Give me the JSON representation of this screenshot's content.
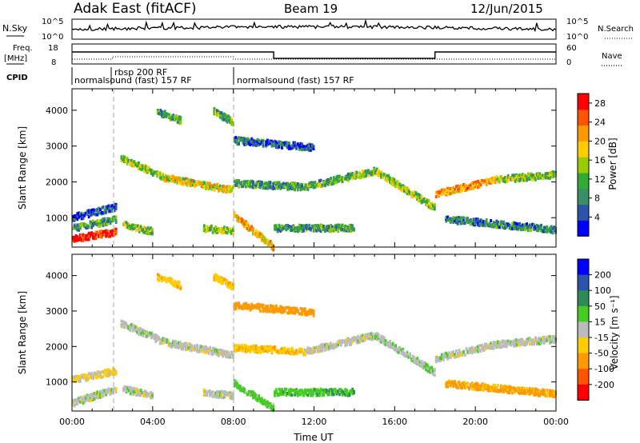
{
  "header": {
    "station": "Adak East (fitACF)",
    "beam": "Beam 19",
    "date": "12/Jun/2015"
  },
  "top_panels": {
    "nsky_label": "N.Sky",
    "nsky_ticks": [
      "10^5",
      "10^0"
    ],
    "nsearch_label": "N.Search",
    "nsearch_ticks": [
      "10^5",
      "10^0"
    ],
    "freq_label": "Freq.",
    "freq_unit": "[MHz]",
    "freq_ticks": [
      "18",
      "8"
    ],
    "nave_label": "Nave",
    "nave_ticks": [
      "60",
      "0"
    ],
    "cpid_label": "CPID",
    "cpid_segments": [
      {
        "label": "normalsound (fast) 157 RF",
        "start_h": 0,
        "end_h": 8
      },
      {
        "label": "rbsp 200 RF",
        "start_h": 2,
        "end_h": 2.3
      },
      {
        "label": "normalsound (fast) 157 RF",
        "start_h": 8,
        "end_h": 24
      }
    ]
  },
  "chart_data": [
    {
      "type": "heatmap",
      "name": "power",
      "title": "",
      "xlabel": "",
      "ylabel": "Slant Range [km]",
      "xlim": [
        0,
        24
      ],
      "ylim": [
        180,
        4600
      ],
      "yticks": [
        "1000",
        "2000",
        "3000",
        "4000"
      ],
      "colorbar": {
        "label": "Power [dB]",
        "ticks": [
          "4",
          "8",
          "12",
          "16",
          "20",
          "24",
          "28"
        ],
        "range": [
          0,
          30
        ],
        "colors": [
          "#0000ff",
          "#2a55a8",
          "#3a8f6a",
          "#33aa33",
          "#99cc00",
          "#ffcc00",
          "#ff9900",
          "#ff5500",
          "#ff0000"
        ]
      },
      "echo_bands": [
        {
          "t": [
            0.0,
            2.2
          ],
          "r_start": 450,
          "r_end": 650,
          "power": 28
        },
        {
          "t": [
            0.0,
            2.2
          ],
          "r_start": 750,
          "r_end": 1000,
          "power": 10
        },
        {
          "t": [
            0.0,
            2.2
          ],
          "r_start": 1050,
          "r_end": 1350,
          "power": 5
        },
        {
          "t": [
            2.4,
            4.6
          ],
          "r_start": 2700,
          "r_end": 2150,
          "power": 14
        },
        {
          "t": [
            4.6,
            8.0
          ],
          "r_start": 2150,
          "r_end": 1800,
          "power": 18
        },
        {
          "t": [
            4.2,
            5.4
          ],
          "r_start": 4000,
          "r_end": 3750,
          "power": 10
        },
        {
          "t": [
            7.0,
            8.0
          ],
          "r_start": 4000,
          "r_end": 3700,
          "power": 12
        },
        {
          "t": [
            8.0,
            10.0
          ],
          "r_start": 1100,
          "r_end": 200,
          "power": 20
        },
        {
          "t": [
            8.0,
            11.5
          ],
          "r_start": 2000,
          "r_end": 1900,
          "power": 10
        },
        {
          "t": [
            11.5,
            15.0
          ],
          "r_start": 1900,
          "r_end": 2350,
          "power": 12
        },
        {
          "t": [
            15.0,
            18.0
          ],
          "r_start": 2350,
          "r_end": 1300,
          "power": 14
        },
        {
          "t": [
            10.0,
            14.0
          ],
          "r_start": 750,
          "r_end": 750,
          "power": 10
        },
        {
          "t": [
            18.0,
            21.0
          ],
          "r_start": 1700,
          "r_end": 2100,
          "power": 22
        },
        {
          "t": [
            21.0,
            24.0
          ],
          "r_start": 2100,
          "r_end": 2250,
          "power": 14
        },
        {
          "t": [
            18.5,
            24.0
          ],
          "r_start": 1000,
          "r_end": 700,
          "power": 8
        },
        {
          "t": [
            8.0,
            12.0
          ],
          "r_start": 3200,
          "r_end": 3000,
          "power": 6
        },
        {
          "t": [
            2.5,
            4.0
          ],
          "r_start": 850,
          "r_end": 650,
          "power": 14
        },
        {
          "t": [
            6.5,
            8.0
          ],
          "r_start": 750,
          "r_end": 650,
          "power": 14
        }
      ]
    },
    {
      "type": "heatmap",
      "name": "velocity",
      "title": "",
      "xlabel": "Time UT",
      "ylabel": "Slant Range [km]",
      "xlim": [
        0,
        24
      ],
      "ylim": [
        180,
        4600
      ],
      "xticks": [
        "00:00",
        "04:00",
        "08:00",
        "12:00",
        "16:00",
        "20:00",
        "00:00"
      ],
      "yticks": [
        "1000",
        "2000",
        "3000",
        "4000"
      ],
      "colorbar": {
        "label": "Velocity [m s⁻¹]",
        "ticks": [
          "200",
          "100",
          "50",
          "15",
          "-15",
          "-50",
          "-100",
          "-200"
        ],
        "colors": [
          "#0000ff",
          "#2a55a8",
          "#2e8b57",
          "#44cc22",
          "#bbbbbb",
          "#ffcc00",
          "#ff9900",
          "#ff5500",
          "#ff0000"
        ]
      },
      "echo_bands": [
        {
          "t": [
            0.0,
            2.2
          ],
          "r_start": 450,
          "r_end": 850,
          "velocity": 0
        },
        {
          "t": [
            0.0,
            2.2
          ],
          "r_start": 1100,
          "r_end": 1350,
          "velocity": -20
        },
        {
          "t": [
            2.4,
            4.6
          ],
          "r_start": 2700,
          "r_end": 2150,
          "velocity": 0
        },
        {
          "t": [
            4.6,
            8.0
          ],
          "r_start": 2150,
          "r_end": 1800,
          "velocity": 0
        },
        {
          "t": [
            4.2,
            5.4
          ],
          "r_start": 4000,
          "r_end": 3750,
          "velocity": -40
        },
        {
          "t": [
            7.0,
            8.0
          ],
          "r_start": 4000,
          "r_end": 3700,
          "velocity": -40
        },
        {
          "t": [
            8.0,
            10.0
          ],
          "r_start": 1000,
          "r_end": 300,
          "velocity": 30
        },
        {
          "t": [
            10.0,
            14.0
          ],
          "r_start": 750,
          "r_end": 750,
          "velocity": 40
        },
        {
          "t": [
            8.0,
            11.5
          ],
          "r_start": 2000,
          "r_end": 1900,
          "velocity": -40
        },
        {
          "t": [
            11.5,
            15.0
          ],
          "r_start": 1900,
          "r_end": 2350,
          "velocity": 0
        },
        {
          "t": [
            15.0,
            18.0
          ],
          "r_start": 2350,
          "r_end": 1300,
          "velocity": 5
        },
        {
          "t": [
            18.0,
            21.0
          ],
          "r_start": 1700,
          "r_end": 2100,
          "velocity": 0
        },
        {
          "t": [
            21.0,
            24.0
          ],
          "r_start": 2100,
          "r_end": 2250,
          "velocity": 0
        },
        {
          "t": [
            18.5,
            24.0
          ],
          "r_start": 1000,
          "r_end": 700,
          "velocity": -60
        },
        {
          "t": [
            8.0,
            12.0
          ],
          "r_start": 3200,
          "r_end": 3000,
          "velocity": -80
        },
        {
          "t": [
            2.5,
            4.0
          ],
          "r_start": 850,
          "r_end": 650,
          "velocity": 0
        },
        {
          "t": [
            6.5,
            8.0
          ],
          "r_start": 750,
          "r_end": 650,
          "velocity": 0
        }
      ]
    }
  ]
}
